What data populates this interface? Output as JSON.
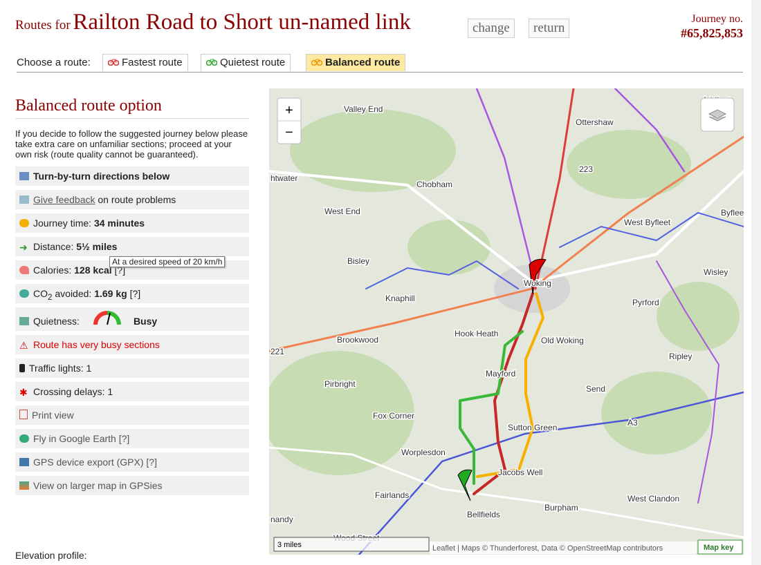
{
  "header": {
    "prefix": "Routes for",
    "title": "Railton Road to Short un-named link",
    "buttons": [
      "change",
      "return"
    ],
    "journey_label": "Journey no.",
    "journey_number": "#65,825,853"
  },
  "tabs": {
    "label": "Choose a route:",
    "items": [
      "Fastest route",
      "Quietest route",
      "Balanced route"
    ]
  },
  "panel": {
    "title": "Balanced route option",
    "intro": "If you decide to follow the suggested journey below please take extra care on unfamiliar sections; proceed at your own risk (route quality cannot be guaranteed).",
    "directions": "Turn-by-turn directions below",
    "feedback": {
      "link": "Give feedback",
      "text": "on route problems"
    },
    "time": {
      "label": "Journey time:",
      "value": "34 minutes",
      "tooltip": "At a desired speed of 20 km/h"
    },
    "distance": {
      "label": "Distance:",
      "value": "5½ miles"
    },
    "calories": {
      "label": "Calories:",
      "value": "128 kcal",
      "help": "[?]"
    },
    "co2": {
      "label": "CO",
      "sub": "2",
      "label2": "avoided:",
      "value": "1.69 kg",
      "help": "[?]"
    },
    "quietness": {
      "label": "Quietness:",
      "value": "Busy"
    },
    "warning": "Route has very busy sections",
    "lights": "Traffic lights: 1",
    "crossings": "Crossing delays: 1",
    "print": "Print view",
    "earth": "Fly in Google Earth [?]",
    "gpx": "GPS device export (GPX) [?]",
    "gpsies": "View on larger map in GPSies",
    "elevation": "Elevation profile:"
  },
  "map": {
    "zoom_in": "+",
    "zoom_out": "−",
    "places": [
      "Valley End",
      "Addlest",
      "Ottershaw",
      "223",
      "htwater",
      "Chobham",
      "West End",
      "West Byfleet",
      "Byfleet",
      "Bisley",
      "Woking",
      "Wisley",
      "Knaphill",
      "Pyrford",
      "Brookwood",
      "Hook Heath",
      "Old Woking",
      "221",
      "Ripley",
      "Pirbright",
      "Mayford",
      "Send",
      "Fox Corner",
      "Sutton Green",
      "A3",
      "Worplesdon",
      "Jacobs Well",
      "Fairlands",
      "West Clandon",
      "Bellfields",
      "Burpham",
      "nandy",
      "Wood Street"
    ],
    "scale": "3 miles",
    "attribution": "Leaflet | Maps © Thunderforest, Data © OpenStreetMap contributors",
    "key": "Map key"
  }
}
